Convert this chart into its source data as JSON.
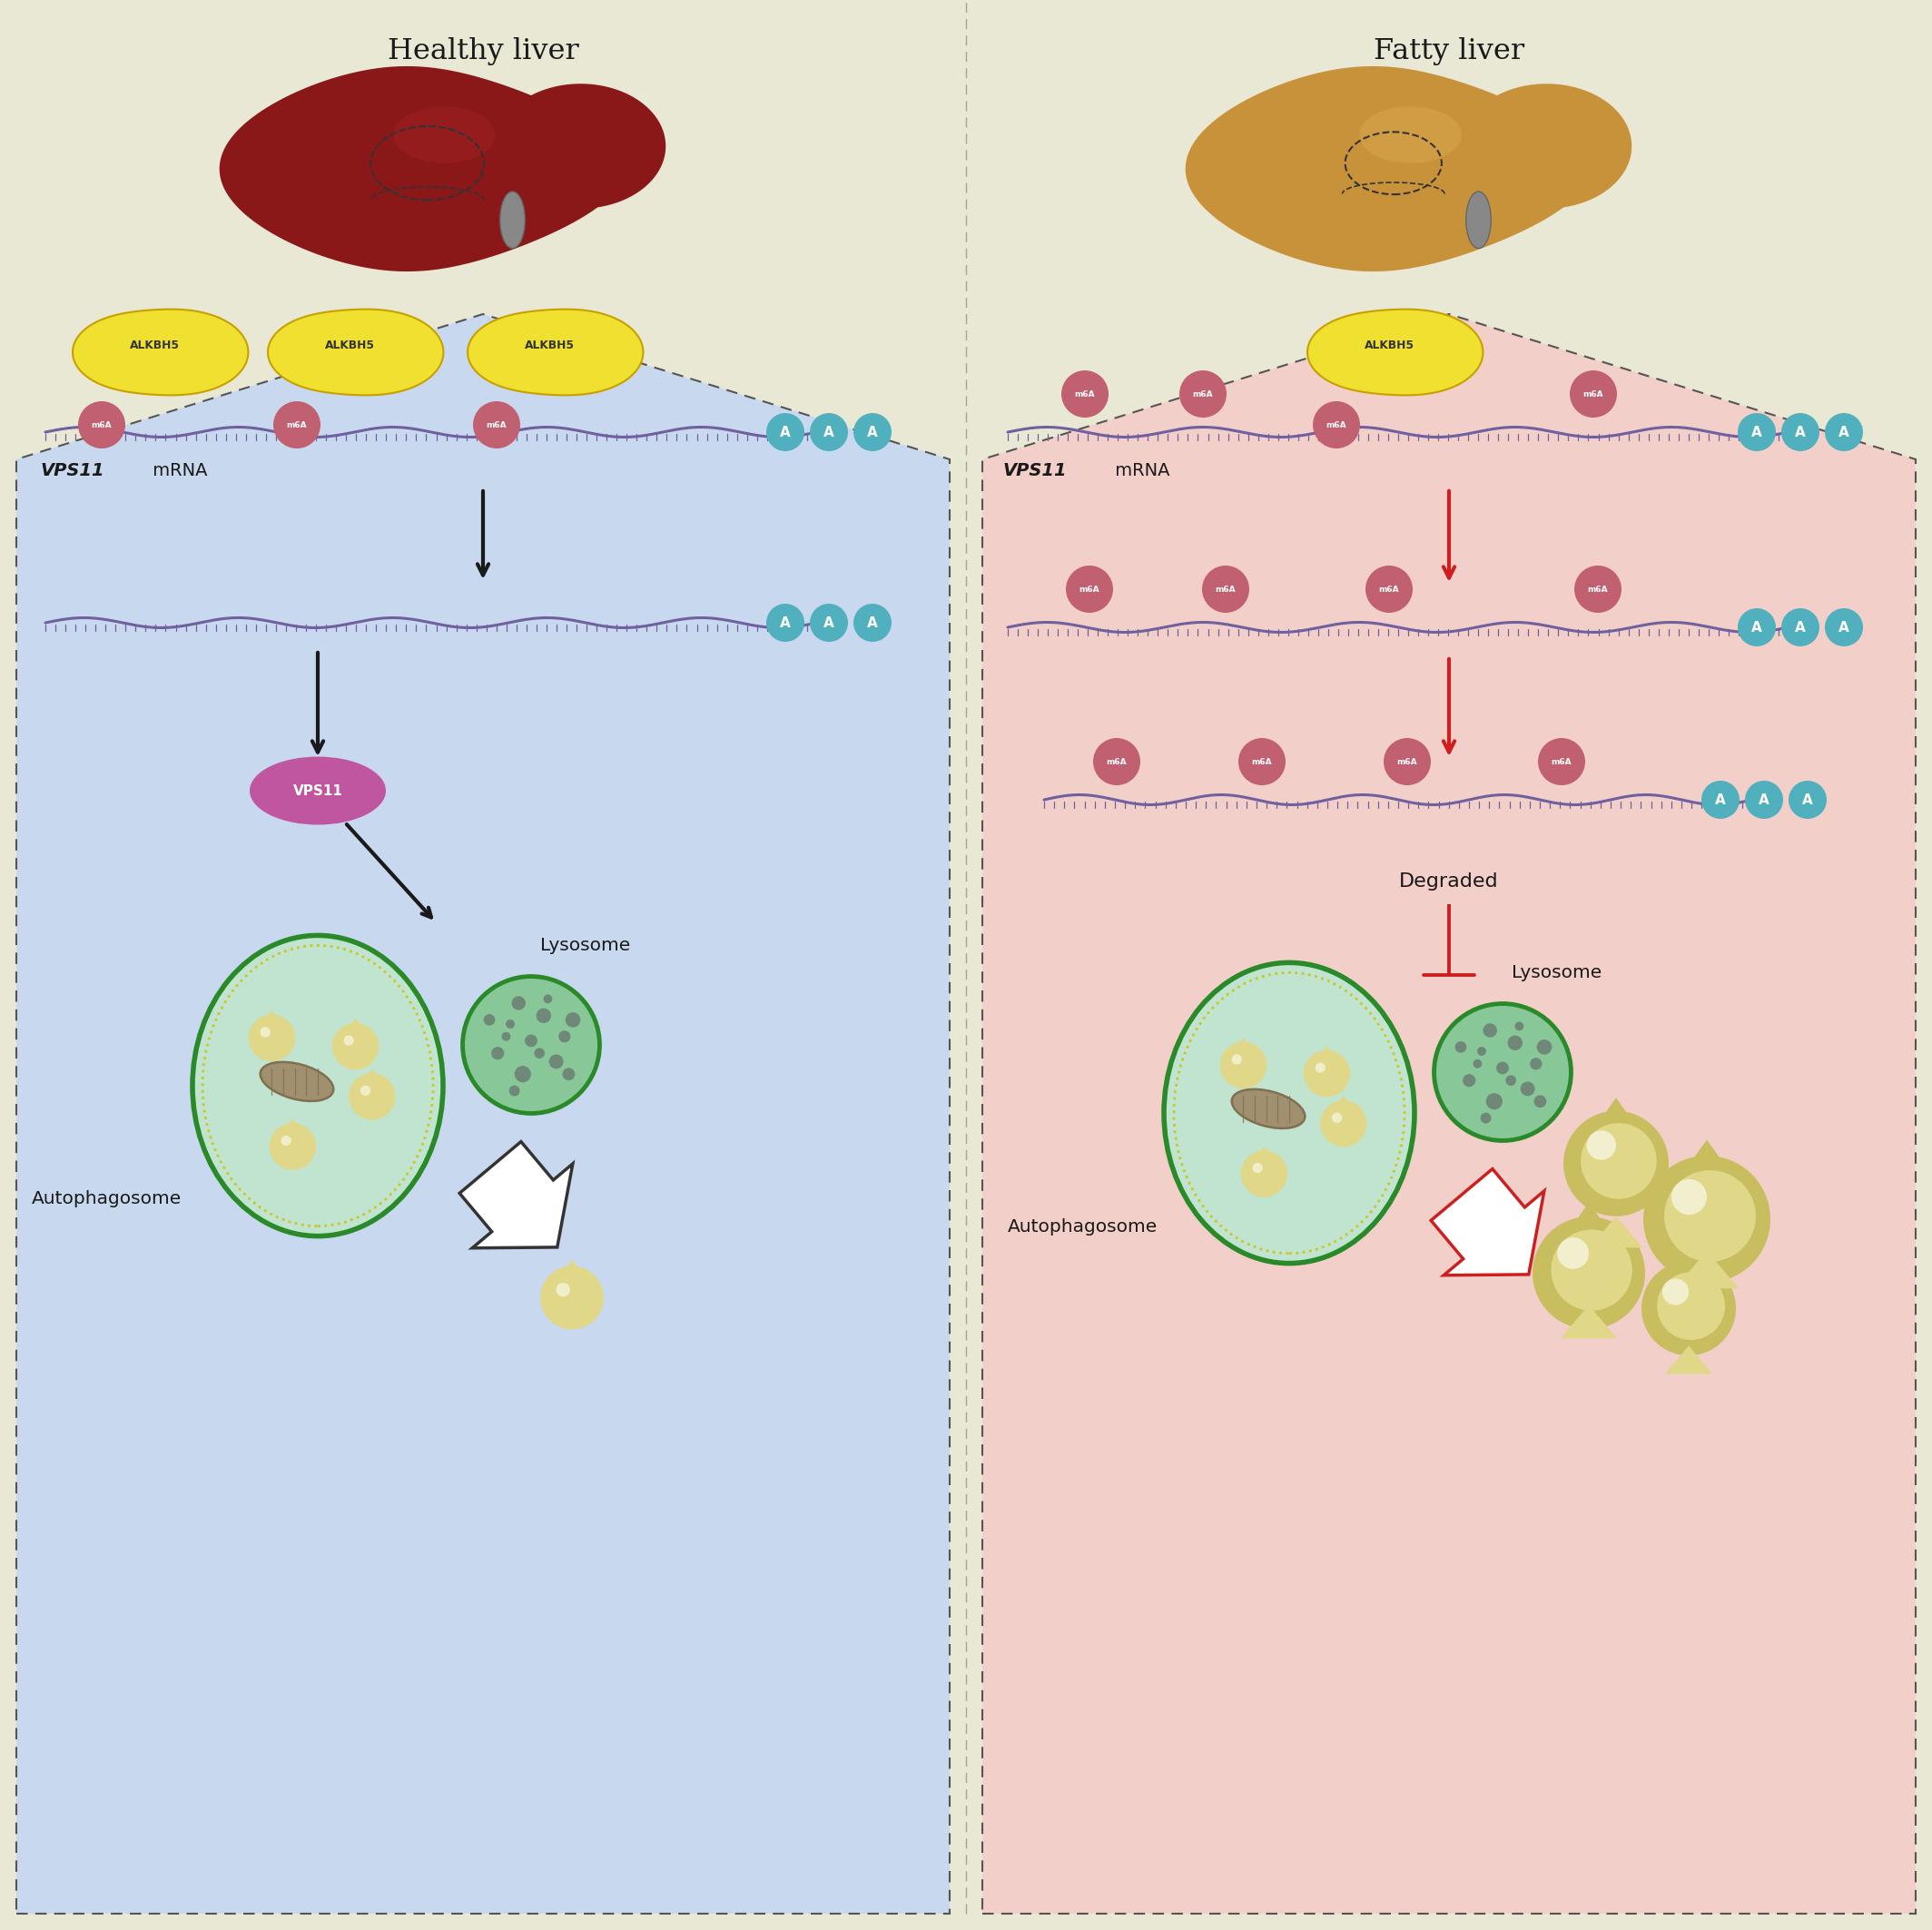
{
  "bg_color_top": "#e8e8d4",
  "bg_color_left": "#c8d8ee",
  "bg_color_right": "#f2cfc8",
  "title_left": "Healthy liver",
  "title_right": "Fatty liver",
  "healthy_liver_color": "#8b1a1a",
  "fatty_liver_color": "#c8923a",
  "alkbh5_color": "#f0e030",
  "alkbh5_outline": "#c8a000",
  "m6a_color": "#c06070",
  "mrna_color": "#7060a0",
  "polyA_color": "#50b0be",
  "arrow_black": "#1a1a1a",
  "arrow_red": "#cc2020",
  "vps11_color": "#c055a0",
  "lysosome_outer": "#2a8a2a",
  "lysosome_inner": "#88c898",
  "lysosome_spot": "#708878",
  "autophagosome_outer": "#2a8a2a",
  "autophagosome_inner": "#c0e4d0",
  "autophagosome_ring": "#d8f0e0",
  "mito_color": "#a09070",
  "mito_outline": "#807050",
  "lipid_color": "#e0d888",
  "lipid_dark": "#c8be60",
  "lipid_highlight": "#f8f4c0",
  "arrow_white": "#ffffff",
  "degraded_text": "Degraded",
  "lysosome_label": "Lysosome",
  "autophagosome_label": "Autophagosome",
  "vps11_label": "VPS11",
  "mRNA_suffix": " mRNA",
  "dot_colors": [
    "#555555",
    "#666666",
    "#777777"
  ]
}
